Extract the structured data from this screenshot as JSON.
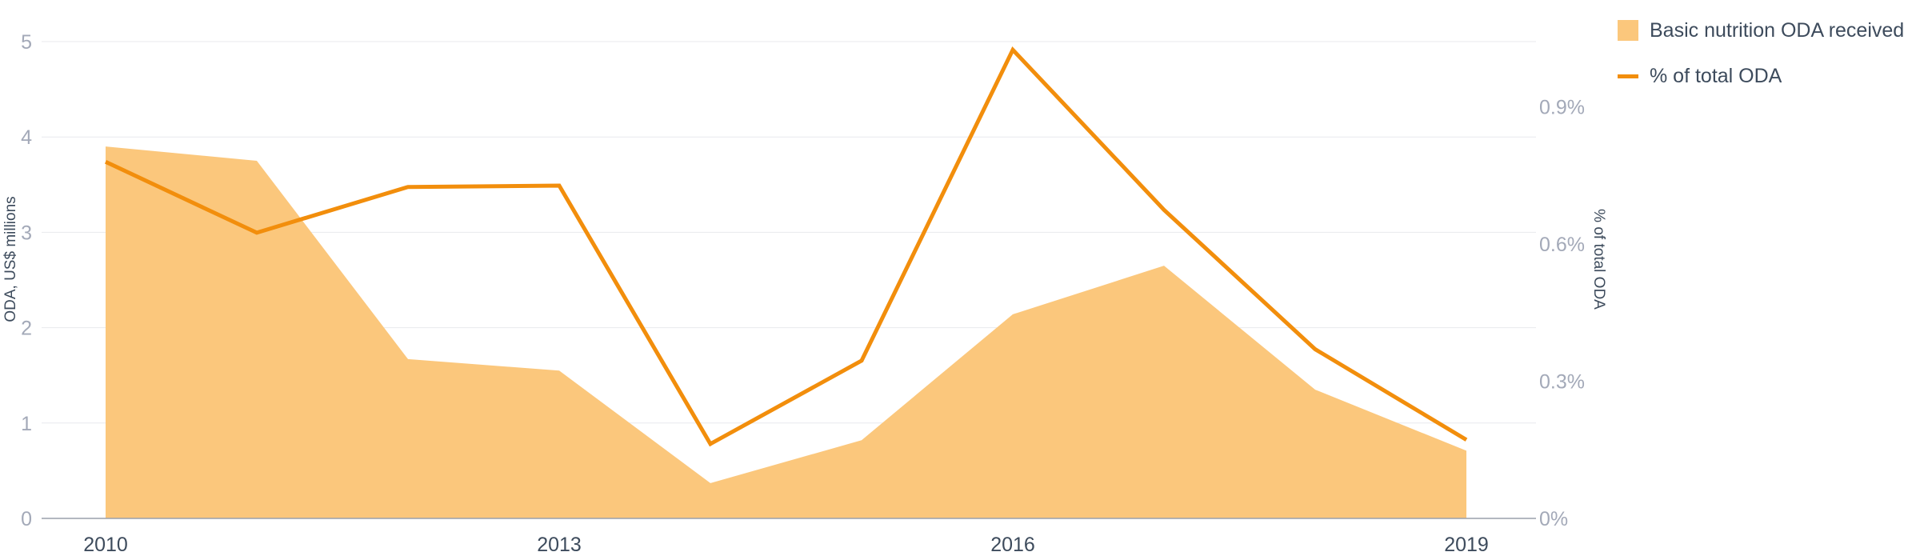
{
  "chart_data": {
    "type": "area+line",
    "x": [
      2010,
      2011,
      2012,
      2013,
      2014,
      2015,
      2016,
      2017,
      2018,
      2019
    ],
    "xticks": [
      "2010",
      "2013",
      "2016",
      "2019"
    ],
    "series": [
      {
        "name": "Basic nutrition ODA received",
        "kind": "area",
        "axis": "left",
        "color": "#fbc77c",
        "values": [
          3.9,
          3.75,
          1.67,
          1.55,
          0.37,
          0.82,
          2.14,
          2.65,
          1.35,
          0.71
        ]
      },
      {
        "name": "% of total ODA",
        "kind": "line",
        "axis": "right",
        "color": "#f28e0c",
        "values": [
          0.78,
          0.625,
          0.725,
          0.728,
          0.163,
          0.345,
          1.025,
          0.675,
          0.37,
          0.172
        ]
      }
    ],
    "y_left": {
      "label": "ODA, US$ millions",
      "ylim": [
        0,
        5
      ],
      "ticks": [
        0,
        1,
        2,
        3,
        4,
        5
      ],
      "tick_labels": [
        "0",
        "1",
        "2",
        "3",
        "4",
        "5"
      ]
    },
    "y_right": {
      "label": "% of total ODA",
      "ylim": [
        0,
        1.043
      ],
      "ticks": [
        0,
        0.3,
        0.6,
        0.9
      ],
      "tick_labels": [
        "0%",
        "0.3%",
        "0.6%",
        "0.9%"
      ]
    },
    "grid": true,
    "legend_position": "top-right"
  },
  "legend": [
    {
      "label": "Basic nutrition ODA received",
      "color": "#fbc77c",
      "kind": "area"
    },
    {
      "label": "% of total ODA",
      "color": "#f28e0c",
      "kind": "line"
    }
  ]
}
